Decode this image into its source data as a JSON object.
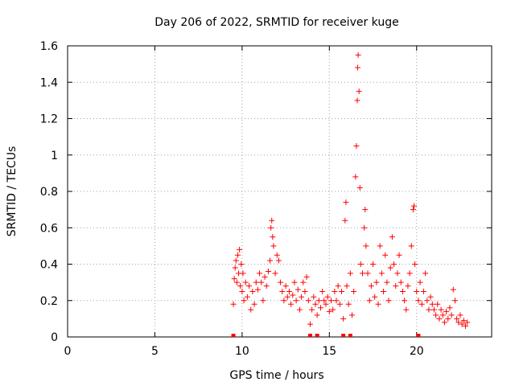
{
  "chart_data": {
    "type": "scatter",
    "title": "Day 206 of 2022, SRMTID for receiver kuge",
    "xlabel": "GPS time / hours",
    "ylabel": "SRMTID / TECUs",
    "xlim": [
      0,
      24.3
    ],
    "ylim": [
      0,
      1.6
    ],
    "xticks": [
      0,
      5,
      10,
      15,
      20
    ],
    "xtick_labels": [
      "0",
      "5",
      "10",
      "15",
      "20"
    ],
    "yticks": [
      0,
      0.2,
      0.4,
      0.6,
      0.8,
      1.0,
      1.2,
      1.4,
      1.6
    ],
    "ytick_labels": [
      "0",
      "0.2",
      "0.4",
      "0.6",
      "0.8",
      "1",
      "1.2",
      "1.4",
      "1.6"
    ],
    "grid": true,
    "marker": "+",
    "color": "#ff0000",
    "series": [
      {
        "name": "SRMTID",
        "points": [
          [
            9.5,
            0.18
          ],
          [
            9.55,
            0.32
          ],
          [
            9.6,
            0.38
          ],
          [
            9.65,
            0.42
          ],
          [
            9.7,
            0.3
          ],
          [
            9.75,
            0.45
          ],
          [
            9.8,
            0.35
          ],
          [
            9.85,
            0.48
          ],
          [
            9.9,
            0.28
          ],
          [
            9.95,
            0.4
          ],
          [
            10.0,
            0.25
          ],
          [
            10.05,
            0.35
          ],
          [
            10.1,
            0.2
          ],
          [
            10.2,
            0.3
          ],
          [
            10.3,
            0.22
          ],
          [
            10.4,
            0.28
          ],
          [
            10.5,
            0.15
          ],
          [
            10.6,
            0.25
          ],
          [
            10.7,
            0.18
          ],
          [
            10.8,
            0.3
          ],
          [
            10.9,
            0.26
          ],
          [
            11.0,
            0.35
          ],
          [
            11.1,
            0.3
          ],
          [
            11.2,
            0.2
          ],
          [
            11.3,
            0.33
          ],
          [
            11.4,
            0.28
          ],
          [
            11.5,
            0.36
          ],
          [
            11.6,
            0.42
          ],
          [
            11.65,
            0.6
          ],
          [
            11.7,
            0.64
          ],
          [
            11.75,
            0.55
          ],
          [
            11.8,
            0.5
          ],
          [
            11.9,
            0.35
          ],
          [
            12.0,
            0.45
          ],
          [
            12.1,
            0.42
          ],
          [
            12.2,
            0.3
          ],
          [
            12.3,
            0.25
          ],
          [
            12.4,
            0.2
          ],
          [
            12.5,
            0.28
          ],
          [
            12.6,
            0.22
          ],
          [
            12.7,
            0.25
          ],
          [
            12.8,
            0.18
          ],
          [
            12.9,
            0.23
          ],
          [
            13.0,
            0.3
          ],
          [
            13.1,
            0.2
          ],
          [
            13.2,
            0.26
          ],
          [
            13.3,
            0.15
          ],
          [
            13.4,
            0.22
          ],
          [
            13.5,
            0.3
          ],
          [
            13.6,
            0.25
          ],
          [
            13.7,
            0.33
          ],
          [
            13.8,
            0.2
          ],
          [
            13.9,
            0.07
          ],
          [
            14.0,
            0.15
          ],
          [
            14.1,
            0.22
          ],
          [
            14.2,
            0.18
          ],
          [
            14.3,
            0.12
          ],
          [
            14.4,
            0.2
          ],
          [
            14.5,
            0.16
          ],
          [
            14.6,
            0.25
          ],
          [
            14.7,
            0.2
          ],
          [
            14.8,
            0.18
          ],
          [
            14.9,
            0.22
          ],
          [
            15.0,
            0.14
          ],
          [
            15.1,
            0.2
          ],
          [
            15.2,
            0.15
          ],
          [
            15.3,
            0.25
          ],
          [
            15.4,
            0.2
          ],
          [
            15.5,
            0.28
          ],
          [
            15.6,
            0.18
          ],
          [
            15.7,
            0.25
          ],
          [
            15.8,
            0.1
          ],
          [
            15.9,
            0.64
          ],
          [
            15.95,
            0.74
          ],
          [
            16.0,
            0.28
          ],
          [
            16.1,
            0.18
          ],
          [
            16.2,
            0.35
          ],
          [
            16.3,
            0.12
          ],
          [
            16.4,
            0.25
          ],
          [
            16.5,
            0.88
          ],
          [
            16.55,
            1.05
          ],
          [
            16.6,
            1.3
          ],
          [
            16.62,
            1.48
          ],
          [
            16.65,
            1.55
          ],
          [
            16.7,
            1.35
          ],
          [
            16.75,
            0.82
          ],
          [
            16.8,
            0.4
          ],
          [
            16.9,
            0.35
          ],
          [
            17.0,
            0.6
          ],
          [
            17.05,
            0.7
          ],
          [
            17.1,
            0.5
          ],
          [
            17.2,
            0.35
          ],
          [
            17.3,
            0.2
          ],
          [
            17.4,
            0.28
          ],
          [
            17.5,
            0.4
          ],
          [
            17.6,
            0.22
          ],
          [
            17.7,
            0.3
          ],
          [
            17.8,
            0.18
          ],
          [
            17.9,
            0.5
          ],
          [
            18.0,
            0.35
          ],
          [
            18.1,
            0.25
          ],
          [
            18.2,
            0.45
          ],
          [
            18.3,
            0.3
          ],
          [
            18.4,
            0.2
          ],
          [
            18.5,
            0.38
          ],
          [
            18.6,
            0.55
          ],
          [
            18.7,
            0.4
          ],
          [
            18.8,
            0.28
          ],
          [
            18.9,
            0.35
          ],
          [
            19.0,
            0.45
          ],
          [
            19.1,
            0.3
          ],
          [
            19.2,
            0.25
          ],
          [
            19.3,
            0.2
          ],
          [
            19.4,
            0.15
          ],
          [
            19.5,
            0.28
          ],
          [
            19.6,
            0.35
          ],
          [
            19.7,
            0.5
          ],
          [
            19.8,
            0.7
          ],
          [
            19.85,
            0.72
          ],
          [
            19.9,
            0.4
          ],
          [
            20.0,
            0.25
          ],
          [
            20.1,
            0.2
          ],
          [
            20.2,
            0.3
          ],
          [
            20.3,
            0.18
          ],
          [
            20.4,
            0.25
          ],
          [
            20.5,
            0.35
          ],
          [
            20.6,
            0.2
          ],
          [
            20.7,
            0.15
          ],
          [
            20.8,
            0.22
          ],
          [
            20.9,
            0.18
          ],
          [
            21.0,
            0.15
          ],
          [
            21.1,
            0.12
          ],
          [
            21.2,
            0.18
          ],
          [
            21.3,
            0.1
          ],
          [
            21.4,
            0.15
          ],
          [
            21.5,
            0.12
          ],
          [
            21.6,
            0.08
          ],
          [
            21.7,
            0.14
          ],
          [
            21.8,
            0.1
          ],
          [
            21.9,
            0.16
          ],
          [
            22.0,
            0.12
          ],
          [
            22.1,
            0.26
          ],
          [
            22.2,
            0.2
          ],
          [
            22.3,
            0.1
          ],
          [
            22.4,
            0.08
          ],
          [
            22.5,
            0.12
          ],
          [
            22.6,
            0.07
          ],
          [
            22.7,
            0.09
          ],
          [
            22.8,
            0.06
          ],
          [
            22.9,
            0.08
          ],
          [
            9.5,
            0.0
          ],
          [
            13.9,
            0.0
          ],
          [
            14.3,
            0.0
          ],
          [
            15.8,
            0.0
          ],
          [
            16.2,
            0.0
          ],
          [
            20.1,
            0.0
          ]
        ]
      }
    ]
  }
}
